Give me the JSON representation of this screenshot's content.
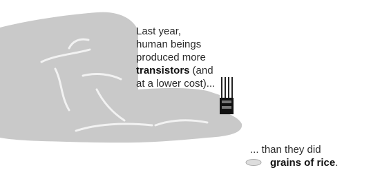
{
  "top_caption": {
    "line1": "Last year,",
    "line2": "human beings",
    "line3": "produced more",
    "line4_bold": "transistors",
    "line4_rest": "(and",
    "line5": "at a lower cost)..."
  },
  "bottom_caption": {
    "line1": "... than they did",
    "line2_bold": "grains of rice",
    "line2_rest": "."
  }
}
